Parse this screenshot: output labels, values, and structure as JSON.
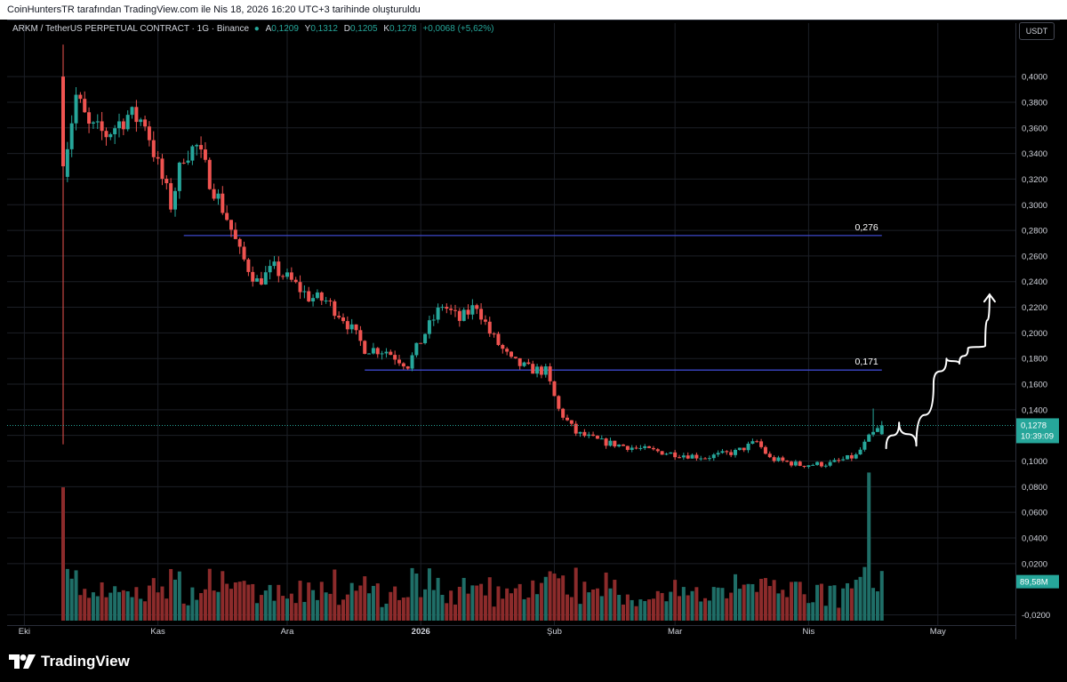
{
  "banner": {
    "text": "CoinHuntersTR tarafından TradingView.com ile Nis 18, 2026 16:20 UTC+3 tarihinde oluşturuldu"
  },
  "legend": {
    "symbol": "ARKM / TetherUS PERPETUAL CONTRACT · 1G · Binance",
    "open_label": "A",
    "open_value": "0,1209",
    "high_label": "Y",
    "high_value": "0,1312",
    "low_label": "D",
    "low_value": "0,1205",
    "close_label": "K",
    "close_value": "0,1278",
    "change": "+0,0068 (+5,62%)"
  },
  "price_scale": {
    "unit": "USDT"
  },
  "colors": {
    "up": "#26a69a",
    "down": "#ef5350",
    "level_line": "#3d47c9",
    "grid": "#1c1f26",
    "background": "#000000"
  },
  "brand": {
    "name": "TradingView",
    "icon": "tradingview-logo-icon"
  },
  "chart_data": {
    "type": "candlestick",
    "title": "ARKM / TetherUS PERPETUAL CONTRACT · 1G · Binance",
    "y_axis": {
      "ylim": [
        -0.028,
        0.432
      ],
      "tick_labels": [
        "0,4000",
        "0,3800",
        "0,3600",
        "0,3400",
        "0,3200",
        "0,3000",
        "0,2800",
        "0,2600",
        "0,2400",
        "0,2200",
        "0,2000",
        "0,1800",
        "0,1600",
        "0,1400",
        "0,1200",
        "0,1000",
        "0,0800",
        "0,0600",
        "0,0400",
        "0,0200",
        "-0,0200"
      ],
      "tick_values": [
        0.4,
        0.38,
        0.36,
        0.34,
        0.32,
        0.3,
        0.28,
        0.26,
        0.24,
        0.22,
        0.2,
        0.18,
        0.16,
        0.14,
        0.12,
        0.1,
        0.08,
        0.06,
        0.04,
        0.02,
        -0.02
      ]
    },
    "x_axis": {
      "tick_labels": [
        "Eki",
        "Kas",
        "Ara",
        "2026",
        "Şub",
        "Mar",
        "Nis",
        "May"
      ],
      "tick_dates": [
        "2025-10-01",
        "2025-11-01",
        "2025-12-01",
        "2026-01-01",
        "2026-02-01",
        "2026-03-01",
        "2026-04-01",
        "2026-05-01"
      ],
      "range": [
        "2025-09-27",
        "2026-05-19"
      ]
    },
    "price_levels": [
      {
        "value": 0.276,
        "label": "0,276"
      },
      {
        "value": 0.171,
        "label": "0,171"
      }
    ],
    "current_price": {
      "value": 0.1278,
      "label": "0,1278",
      "countdown": "10:39:09"
    },
    "volume_label": "89,58M",
    "close_path": [
      [
        "2025-10-10",
        0.33
      ],
      [
        "2025-10-13",
        0.385
      ],
      [
        "2025-10-16",
        0.36
      ],
      [
        "2025-10-20",
        0.355
      ],
      [
        "2025-10-25",
        0.37
      ],
      [
        "2025-10-29",
        0.365
      ],
      [
        "2025-11-01",
        0.33
      ],
      [
        "2025-11-04",
        0.3
      ],
      [
        "2025-11-07",
        0.34
      ],
      [
        "2025-11-10",
        0.345
      ],
      [
        "2025-11-13",
        0.32
      ],
      [
        "2025-11-17",
        0.29
      ],
      [
        "2025-11-20",
        0.262
      ],
      [
        "2025-11-24",
        0.24
      ],
      [
        "2025-11-28",
        0.25
      ],
      [
        "2025-12-02",
        0.24
      ],
      [
        "2025-12-06",
        0.228
      ],
      [
        "2025-12-10",
        0.225
      ],
      [
        "2025-12-14",
        0.212
      ],
      [
        "2025-12-19",
        0.188
      ],
      [
        "2025-12-24",
        0.186
      ],
      [
        "2025-12-29",
        0.175
      ],
      [
        "2026-01-02",
        0.2
      ],
      [
        "2026-01-06",
        0.222
      ],
      [
        "2026-01-10",
        0.21
      ],
      [
        "2026-01-14",
        0.222
      ],
      [
        "2026-01-17",
        0.2
      ],
      [
        "2026-01-22",
        0.178
      ],
      [
        "2026-01-26",
        0.172
      ],
      [
        "2026-01-30",
        0.17
      ],
      [
        "2026-02-02",
        0.14
      ],
      [
        "2026-02-06",
        0.122
      ],
      [
        "2026-02-12",
        0.115
      ],
      [
        "2026-02-20",
        0.11
      ],
      [
        "2026-02-28",
        0.106
      ],
      [
        "2026-03-08",
        0.103
      ],
      [
        "2026-03-15",
        0.107
      ],
      [
        "2026-03-20",
        0.115
      ],
      [
        "2026-03-23",
        0.102
      ],
      [
        "2026-03-30",
        0.097
      ],
      [
        "2026-04-06",
        0.098
      ],
      [
        "2026-04-12",
        0.104
      ],
      [
        "2026-04-15",
        0.118
      ],
      [
        "2026-04-18",
        0.1278
      ]
    ],
    "volume_peaks": [
      [
        "2025-10-10",
        0.9
      ],
      [
        "2026-04-15",
        1.0
      ]
    ],
    "projection": [
      [
        "2026-04-19",
        0.11
      ],
      [
        "2026-04-22",
        0.13
      ],
      [
        "2026-04-26",
        0.112
      ],
      [
        "2026-04-30",
        0.16
      ],
      [
        "2026-05-03",
        0.18
      ],
      [
        "2026-05-06",
        0.176
      ],
      [
        "2026-05-08",
        0.188
      ],
      [
        "2026-05-12",
        0.19
      ],
      [
        "2026-05-13",
        0.23
      ]
    ]
  }
}
